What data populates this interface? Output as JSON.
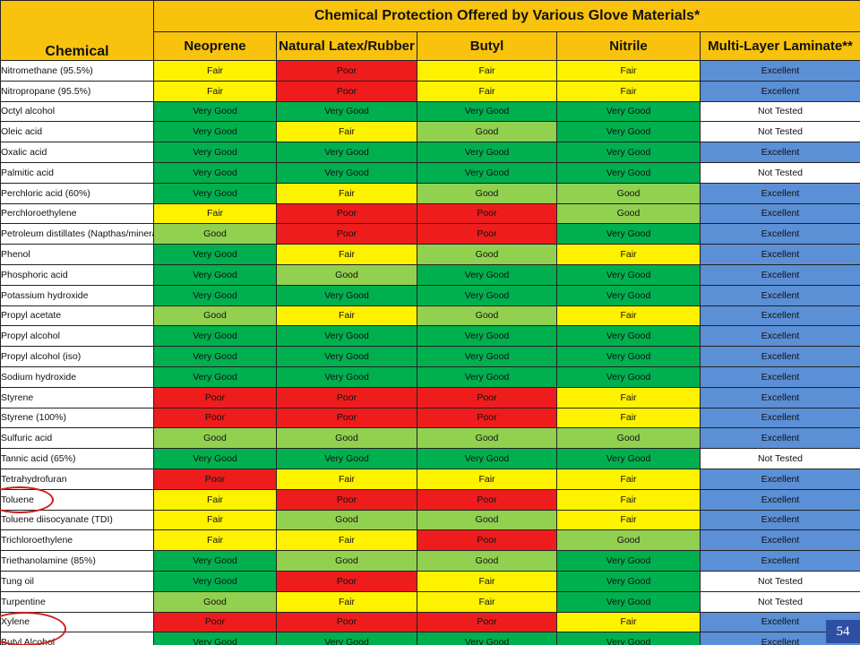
{
  "table": {
    "corner_label": "Chemical",
    "title": "Chemical Protection Offered by Various Glove Materials*",
    "columns": [
      "Neoprene",
      "Natural Latex/Rubber",
      "Butyl",
      "Nitrile",
      "Multi-Layer Laminate**"
    ],
    "rows": [
      {
        "chemical": "Nitromethane (95.5%)",
        "ratings": [
          "Fair",
          "Poor",
          "Fair",
          "Fair",
          "Excellent"
        ]
      },
      {
        "chemical": "Nitropropane (95.5%)",
        "ratings": [
          "Fair",
          "Poor",
          "Fair",
          "Fair",
          "Excellent"
        ]
      },
      {
        "chemical": "Octyl alcohol",
        "ratings": [
          "Very Good",
          "Very Good",
          "Very Good",
          "Very Good",
          "Not Tested"
        ]
      },
      {
        "chemical": "Oleic acid",
        "ratings": [
          "Very Good",
          "Fair",
          "Good",
          "Very Good",
          "Not Tested"
        ]
      },
      {
        "chemical": "Oxalic acid",
        "ratings": [
          "Very Good",
          "Very Good",
          "Very Good",
          "Very Good",
          "Excellent"
        ]
      },
      {
        "chemical": "Palmitic acid",
        "ratings": [
          "Very Good",
          "Very Good",
          "Very Good",
          "Very Good",
          "Not Tested"
        ]
      },
      {
        "chemical": "Perchloric acid (60%)",
        "ratings": [
          "Very Good",
          "Fair",
          "Good",
          "Good",
          "Excellent"
        ]
      },
      {
        "chemical": "Perchloroethylene",
        "ratings": [
          "Fair",
          "Poor",
          "Poor",
          "Good",
          "Excellent"
        ]
      },
      {
        "chemical": "Petroleum distillates (Napthas/mineral spirits",
        "ratings": [
          "Good",
          "Poor",
          "Poor",
          "Very Good",
          "Excellent"
        ]
      },
      {
        "chemical": "Phenol",
        "ratings": [
          "Very Good",
          "Fair",
          "Good",
          "Fair",
          "Excellent"
        ]
      },
      {
        "chemical": "Phosphoric acid",
        "ratings": [
          "Very Good",
          "Good",
          "Very Good",
          "Very Good",
          "Excellent"
        ]
      },
      {
        "chemical": "Potassium hydroxide",
        "ratings": [
          "Very Good",
          "Very Good",
          "Very Good",
          "Very Good",
          "Excellent"
        ]
      },
      {
        "chemical": "Propyl acetate",
        "ratings": [
          "Good",
          "Fair",
          "Good",
          "Fair",
          "Excellent"
        ]
      },
      {
        "chemical": "Propyl alcohol",
        "ratings": [
          "Very Good",
          "Very Good",
          "Very Good",
          "Very Good",
          "Excellent"
        ]
      },
      {
        "chemical": "Propyl alcohol (iso)",
        "ratings": [
          "Very Good",
          "Very Good",
          "Very Good",
          "Very Good",
          "Excellent"
        ]
      },
      {
        "chemical": "Sodium hydroxide",
        "ratings": [
          "Very Good",
          "Very Good",
          "Very Good",
          "Very Good",
          "Excellent"
        ]
      },
      {
        "chemical": "Styrene",
        "ratings": [
          "Poor",
          "Poor",
          "Poor",
          "Fair",
          "Excellent"
        ]
      },
      {
        "chemical": "Styrene (100%)",
        "ratings": [
          "Poor",
          "Poor",
          "Poor",
          "Fair",
          "Excellent"
        ]
      },
      {
        "chemical": "Sulfuric acid",
        "ratings": [
          "Good",
          "Good",
          "Good",
          "Good",
          "Excellent"
        ]
      },
      {
        "chemical": "Tannic acid (65%)",
        "ratings": [
          "Very Good",
          "Very Good",
          "Very Good",
          "Very Good",
          "Not Tested"
        ]
      },
      {
        "chemical": "Tetrahydrofuran",
        "ratings": [
          "Poor",
          "Fair",
          "Fair",
          "Fair",
          "Excellent"
        ]
      },
      {
        "chemical": "Toluene",
        "ratings": [
          "Fair",
          "Poor",
          "Poor",
          "Fair",
          "Excellent"
        ]
      },
      {
        "chemical": "Toluene diisocyanate (TDI)",
        "ratings": [
          "Fair",
          "Good",
          "Good",
          "Fair",
          "Excellent"
        ]
      },
      {
        "chemical": "Trichloroethylene",
        "ratings": [
          "Fair",
          "Fair",
          "Poor",
          "Good",
          "Excellent"
        ]
      },
      {
        "chemical": "Triethanolamine (85%)",
        "ratings": [
          "Very Good",
          "Good",
          "Good",
          "Very Good",
          "Excellent"
        ]
      },
      {
        "chemical": "Tung oil",
        "ratings": [
          "Very Good",
          "Poor",
          "Fair",
          "Very Good",
          "Not Tested"
        ]
      },
      {
        "chemical": "Turpentine",
        "ratings": [
          "Good",
          "Fair",
          "Fair",
          "Very Good",
          "Not Tested"
        ]
      },
      {
        "chemical": "Xylene",
        "ratings": [
          "Poor",
          "Poor",
          "Poor",
          "Fair",
          "Excellent"
        ]
      },
      {
        "chemical": "Butyl Alcohol",
        "ratings": [
          "Very Good",
          "Very Good",
          "Very Good",
          "Very Good",
          "Excellent"
        ]
      }
    ]
  },
  "rating_colors": {
    "Poor": "#ee1c1c",
    "Fair": "#fef200",
    "Good": "#92d050",
    "Very Good": "#00b04f",
    "Excellent": "#5b8fd6",
    "Not Tested": "#ffffff"
  },
  "highlight_color": "#d01c1c",
  "page_number": "54"
}
